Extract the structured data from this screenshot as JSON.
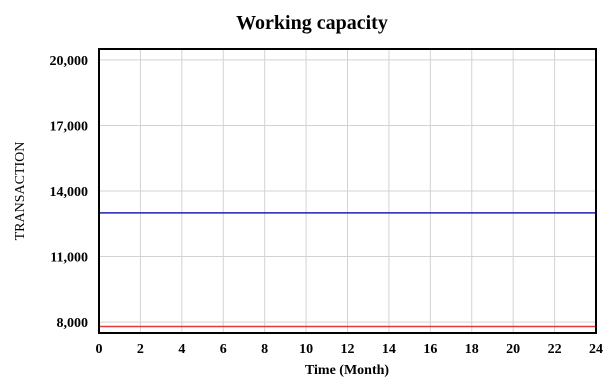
{
  "chart_data": {
    "type": "line",
    "title": "Working capacity",
    "xlabel": "Time (Month)",
    "ylabel": "TRANSACTION",
    "xlim": [
      0,
      24
    ],
    "ylim": [
      7500,
      20500
    ],
    "x_ticks": [
      "0",
      "2",
      "4",
      "6",
      "8",
      "10",
      "12",
      "14",
      "16",
      "18",
      "20",
      "22",
      "24"
    ],
    "y_ticks": [
      "8,000",
      "11,000",
      "14,000",
      "17,000",
      "20,000"
    ],
    "y_tick_values": [
      8000,
      11000,
      14000,
      17000,
      20000
    ],
    "grid": true,
    "series": [
      {
        "color": "#1f1fb4",
        "x": [
          0,
          24
        ],
        "values": [
          13000,
          13000
        ]
      },
      {
        "color": "#e33b3b",
        "x": [
          0,
          24
        ],
        "values": [
          7800,
          7800
        ]
      }
    ]
  }
}
